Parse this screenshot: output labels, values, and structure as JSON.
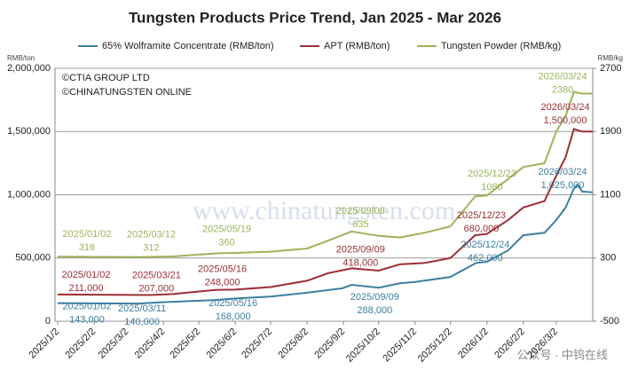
{
  "chart_data": {
    "type": "line",
    "title": "Tungsten Products Price Trend, Jan 2025 - Mar 2026",
    "y_axis_label": "RMB/ton",
    "y2_axis_label": "RMB/kg",
    "copyright": [
      "©CTIA GROUP LTD",
      "©CHINATUNGSTEN ONLINE"
    ],
    "watermark": "www.chinatungsten.com",
    "watermark_2": "公众号 · 中钨在线",
    "grid": true,
    "xlim": [
      "2025/1/2",
      "2026/4/2"
    ],
    "xticks": [
      "2025/1/2",
      "2025/2/2",
      "2025/3/2",
      "2025/4/2",
      "2025/5/2",
      "2025/6/2",
      "2025/7/2",
      "2025/8/2",
      "2025/9/2",
      "2025/10/2",
      "2025/11/2",
      "2025/12/2",
      "2026/1/2",
      "2026/2/2",
      "2026/3/2"
    ],
    "ylim": [
      0,
      2000000
    ],
    "yticks": [
      0,
      {
        "value": 500000,
        "label": "500,000"
      },
      {
        "value": 1000000,
        "label": "1,000,000"
      },
      {
        "value": 1500000,
        "label": "1,500,000"
      },
      {
        "value": 2000000,
        "label": "2,000,000"
      }
    ],
    "y2lim": [
      -500,
      2700
    ],
    "y2ticks": [
      -500,
      300,
      1100,
      1900,
      2700
    ],
    "series": [
      {
        "name": "65% Wolframite Concentrate (RMB/ton)",
        "color": "#3b7fa0",
        "x": [
          "2025/1/2",
          "2025/3/11",
          "2025/4/1",
          "2025/5/16",
          "2025/6/2",
          "2025/7/2",
          "2025/8/2",
          "2025/9/1",
          "2025/9/9",
          "2025/10/2",
          "2025/10/20",
          "2025/11/2",
          "2025/12/2",
          "2025/12/24",
          "2026/1/2",
          "2026/1/20",
          "2026/2/2",
          "2026/2/20",
          "2026/3/2",
          "2026/3/10",
          "2026/3/17",
          "2026/3/20",
          "2026/3/24",
          "2026/4/2"
        ],
        "values": [
          143000,
          140000,
          150000,
          168000,
          180000,
          195000,
          225000,
          260000,
          288000,
          265000,
          300000,
          310000,
          350000,
          462000,
          470000,
          560000,
          680000,
          700000,
          800000,
          900000,
          1050000,
          1080000,
          1025000,
          1020000
        ]
      },
      {
        "name": "APT (RMB/ton)",
        "color": "#9c2f35",
        "x": [
          "2025/1/2",
          "2025/3/21",
          "2025/4/10",
          "2025/5/16",
          "2025/6/2",
          "2025/7/2",
          "2025/8/2",
          "2025/8/20",
          "2025/9/9",
          "2025/10/2",
          "2025/10/20",
          "2025/11/10",
          "2025/12/2",
          "2025/12/23",
          "2026/1/2",
          "2026/1/20",
          "2026/2/2",
          "2026/2/20",
          "2026/3/2",
          "2026/3/10",
          "2026/3/17",
          "2026/3/24",
          "2026/4/2"
        ],
        "values": [
          211000,
          207000,
          215000,
          248000,
          250000,
          270000,
          320000,
          380000,
          418000,
          400000,
          450000,
          460000,
          500000,
          680000,
          690000,
          800000,
          900000,
          950000,
          1150000,
          1300000,
          1520000,
          1500000,
          1500000
        ]
      },
      {
        "name": "Tungsten Powder (RMB/kg)",
        "color": "#9bb45a",
        "axis": "y2",
        "x": [
          "2025/1/2",
          "2025/3/12",
          "2025/4/10",
          "2025/5/19",
          "2025/6/2",
          "2025/7/2",
          "2025/8/2",
          "2025/8/20",
          "2025/9/9",
          "2025/10/2",
          "2025/10/20",
          "2025/11/10",
          "2025/12/2",
          "2025/12/23",
          "2026/1/2",
          "2026/1/20",
          "2026/2/2",
          "2026/2/20",
          "2026/3/2",
          "2026/3/10",
          "2026/3/17",
          "2026/3/24",
          "2026/4/2"
        ],
        "values": [
          316,
          312,
          320,
          360,
          365,
          380,
          420,
          520,
          635,
          580,
          560,
          620,
          700,
          1080,
          1090,
          1300,
          1450,
          1500,
          1900,
          2100,
          2400,
          2380,
          2380
        ]
      }
    ],
    "annotations": [
      {
        "series": 2,
        "date": "2025/01/02",
        "value": 316
      },
      {
        "series": 2,
        "date": "2025/03/12",
        "value": 312
      },
      {
        "series": 2,
        "date": "2025/05/19",
        "value": 360
      },
      {
        "series": 2,
        "date": "2025/09/09",
        "value": 635
      },
      {
        "series": 2,
        "date": "2025/12/23",
        "value": 1080
      },
      {
        "series": 2,
        "date": "2026/03/24",
        "value": 2380
      },
      {
        "series": 1,
        "date": "2025/01/02",
        "value": 211000,
        "label": "211,000"
      },
      {
        "series": 1,
        "date": "2025/03/21",
        "value": 207000,
        "label": "207,000"
      },
      {
        "series": 1,
        "date": "2025/05/16",
        "value": 248000,
        "label": "248,000"
      },
      {
        "series": 1,
        "date": "2025/09/09",
        "value": 418000,
        "label": "418,000"
      },
      {
        "series": 1,
        "date": "2025/12/23",
        "value": 680000,
        "label": "680,000"
      },
      {
        "series": 1,
        "date": "2026/03/24",
        "value": 1500000,
        "label": "1,500,000"
      },
      {
        "series": 0,
        "date": "2025/01/02",
        "value": 143000,
        "label": "143,000"
      },
      {
        "series": 0,
        "date": "2025/03/11",
        "value": 140000,
        "label": "140,000"
      },
      {
        "series": 0,
        "date": "2025/05/16",
        "value": 168000,
        "label": "168,000"
      },
      {
        "series": 0,
        "date": "2025/09/09",
        "value": 288000,
        "label": "288,000"
      },
      {
        "series": 0,
        "date": "2025/12/24",
        "value": 462000,
        "label": "462,000"
      },
      {
        "series": 0,
        "date": "2026/03/24",
        "value": 1025000,
        "label": "1,025,000"
      }
    ]
  }
}
